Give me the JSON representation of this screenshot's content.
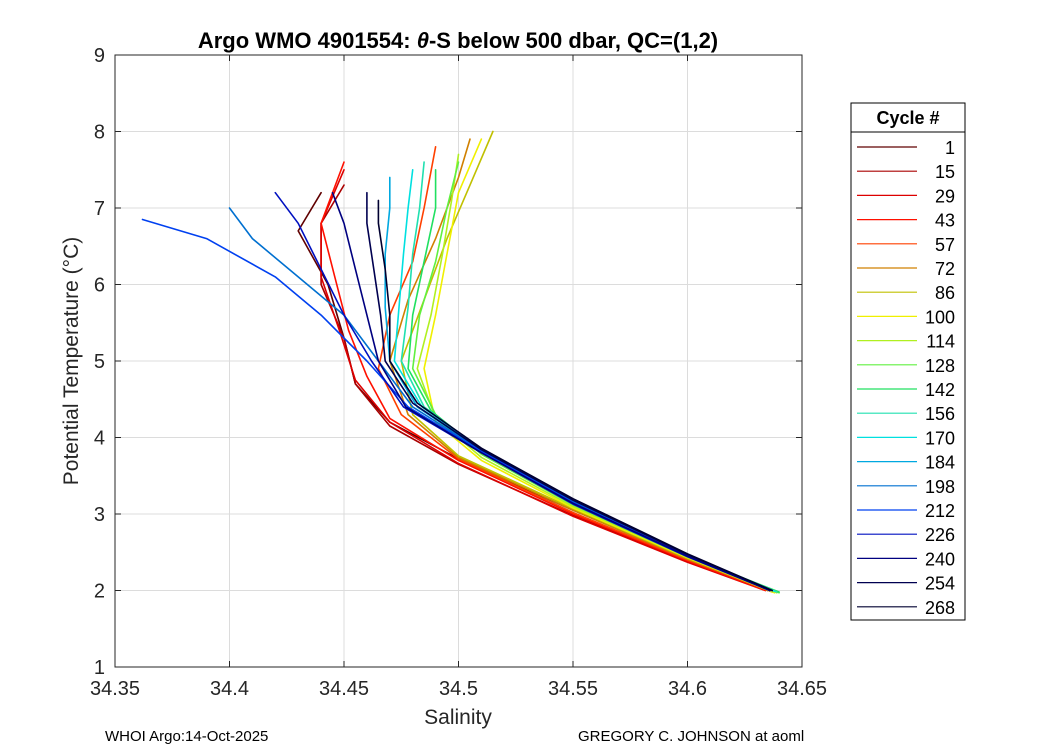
{
  "chart_data": {
    "type": "line",
    "title_parts": [
      "Argo WMO 4901554: ",
      "θ",
      "-S below 500 dbar,  QC=(1,2)"
    ],
    "xlabel": "Salinity",
    "ylabel": "Potential Temperature (°C)",
    "xlim": [
      34.35,
      34.65
    ],
    "ylim": [
      1,
      9
    ],
    "x_tick_labels": [
      "34.35",
      "34.4",
      "34.45",
      "34.5",
      "34.55",
      "34.6",
      "34.65"
    ],
    "y_tick_labels": [
      "1",
      "2",
      "3",
      "4",
      "5",
      "6",
      "7",
      "8",
      "9"
    ],
    "grid": true,
    "legend_title": "Cycle #",
    "legend_position": "right, outside",
    "series": [
      {
        "name": "1",
        "color": "#600000",
        "points": [
          [
            34.637,
            2.0
          ],
          [
            34.6,
            2.42
          ],
          [
            34.55,
            3.05
          ],
          [
            34.5,
            3.72
          ],
          [
            34.47,
            4.2
          ],
          [
            34.455,
            4.7
          ],
          [
            34.45,
            5.3
          ],
          [
            34.443,
            6.0
          ],
          [
            34.43,
            6.7
          ],
          [
            34.44,
            7.2
          ]
        ]
      },
      {
        "name": "15",
        "color": "#aa0000",
        "points": [
          [
            34.635,
            2.0
          ],
          [
            34.6,
            2.38
          ],
          [
            34.55,
            2.98
          ],
          [
            34.5,
            3.65
          ],
          [
            34.47,
            4.15
          ],
          [
            34.455,
            4.7
          ],
          [
            34.45,
            5.3
          ],
          [
            34.44,
            6.0
          ],
          [
            34.44,
            6.8
          ],
          [
            34.45,
            7.3
          ]
        ]
      },
      {
        "name": "29",
        "color": "#dd0000",
        "points": [
          [
            34.634,
            2.0
          ],
          [
            34.6,
            2.37
          ],
          [
            34.55,
            2.97
          ],
          [
            34.5,
            3.66
          ],
          [
            34.47,
            4.2
          ],
          [
            34.455,
            4.75
          ],
          [
            34.448,
            5.4
          ],
          [
            34.44,
            6.1
          ],
          [
            34.44,
            6.8
          ],
          [
            34.45,
            7.5
          ]
        ]
      },
      {
        "name": "43",
        "color": "#ff1000",
        "points": [
          [
            34.634,
            2.0
          ],
          [
            34.6,
            2.39
          ],
          [
            34.55,
            3.0
          ],
          [
            34.5,
            3.7
          ],
          [
            34.47,
            4.25
          ],
          [
            34.46,
            4.8
          ],
          [
            34.452,
            5.4
          ],
          [
            34.446,
            6.1
          ],
          [
            34.44,
            6.8
          ],
          [
            34.45,
            7.6
          ]
        ]
      },
      {
        "name": "57",
        "color": "#ff4000",
        "points": [
          [
            34.636,
            2.0
          ],
          [
            34.6,
            2.4
          ],
          [
            34.55,
            3.02
          ],
          [
            34.5,
            3.72
          ],
          [
            34.475,
            4.3
          ],
          [
            34.465,
            4.9
          ],
          [
            34.47,
            5.6
          ],
          [
            34.48,
            6.3
          ],
          [
            34.485,
            7.0
          ],
          [
            34.49,
            7.8
          ]
        ]
      },
      {
        "name": "72",
        "color": "#d08000",
        "points": [
          [
            34.637,
            1.98
          ],
          [
            34.6,
            2.41
          ],
          [
            34.55,
            3.05
          ],
          [
            34.5,
            3.74
          ],
          [
            34.478,
            4.3
          ],
          [
            34.47,
            5.0
          ],
          [
            34.478,
            5.8
          ],
          [
            34.49,
            6.6
          ],
          [
            34.5,
            7.4
          ],
          [
            34.505,
            7.9
          ]
        ]
      },
      {
        "name": "86",
        "color": "#c0c000",
        "points": [
          [
            34.638,
            1.98
          ],
          [
            34.6,
            2.42
          ],
          [
            34.55,
            3.07
          ],
          [
            34.5,
            3.76
          ],
          [
            34.48,
            4.3
          ],
          [
            34.475,
            5.0
          ],
          [
            34.485,
            5.8
          ],
          [
            34.495,
            6.6
          ],
          [
            34.505,
            7.3
          ],
          [
            34.515,
            8.0
          ]
        ]
      },
      {
        "name": "100",
        "color": "#f0f000",
        "points": [
          [
            34.638,
            1.97
          ],
          [
            34.6,
            2.43
          ],
          [
            34.55,
            3.08
          ],
          [
            34.51,
            3.7
          ],
          [
            34.49,
            4.2
          ],
          [
            34.485,
            4.9
          ],
          [
            34.49,
            5.6
          ],
          [
            34.495,
            6.4
          ],
          [
            34.5,
            7.2
          ],
          [
            34.51,
            7.9
          ]
        ]
      },
      {
        "name": "114",
        "color": "#b0f020",
        "points": [
          [
            34.639,
            1.97
          ],
          [
            34.6,
            2.44
          ],
          [
            34.55,
            3.1
          ],
          [
            34.51,
            3.74
          ],
          [
            34.49,
            4.25
          ],
          [
            34.482,
            4.9
          ],
          [
            34.488,
            5.6
          ],
          [
            34.493,
            6.4
          ],
          [
            34.497,
            7.1
          ],
          [
            34.5,
            7.7
          ]
        ]
      },
      {
        "name": "128",
        "color": "#60f040",
        "points": [
          [
            34.64,
            1.97
          ],
          [
            34.6,
            2.44
          ],
          [
            34.55,
            3.12
          ],
          [
            34.51,
            3.78
          ],
          [
            34.49,
            4.3
          ],
          [
            34.48,
            4.9
          ],
          [
            34.483,
            5.6
          ],
          [
            34.49,
            6.3
          ],
          [
            34.495,
            7.0
          ],
          [
            34.5,
            7.6
          ]
        ]
      },
      {
        "name": "142",
        "color": "#20e060",
        "points": [
          [
            34.64,
            1.98
          ],
          [
            34.6,
            2.45
          ],
          [
            34.55,
            3.14
          ],
          [
            34.51,
            3.82
          ],
          [
            34.488,
            4.35
          ],
          [
            34.478,
            4.9
          ],
          [
            34.48,
            5.6
          ],
          [
            34.485,
            6.3
          ],
          [
            34.49,
            7.0
          ],
          [
            34.49,
            7.5
          ]
        ]
      },
      {
        "name": "156",
        "color": "#20e0b0",
        "points": [
          [
            34.639,
            1.98
          ],
          [
            34.6,
            2.46
          ],
          [
            34.55,
            3.16
          ],
          [
            34.51,
            3.84
          ],
          [
            34.485,
            4.4
          ],
          [
            34.475,
            5.0
          ],
          [
            34.478,
            5.7
          ],
          [
            34.48,
            6.4
          ],
          [
            34.483,
            7.0
          ],
          [
            34.485,
            7.6
          ]
        ]
      },
      {
        "name": "170",
        "color": "#00e0e0",
        "points": [
          [
            34.638,
            1.99
          ],
          [
            34.6,
            2.46
          ],
          [
            34.55,
            3.16
          ],
          [
            34.51,
            3.84
          ],
          [
            34.484,
            4.4
          ],
          [
            34.472,
            5.0
          ],
          [
            34.474,
            5.7
          ],
          [
            34.476,
            6.4
          ],
          [
            34.478,
            7.0
          ],
          [
            34.48,
            7.5
          ]
        ]
      },
      {
        "name": "184",
        "color": "#00a8e0",
        "points": [
          [
            34.637,
            2.0
          ],
          [
            34.6,
            2.47
          ],
          [
            34.55,
            3.17
          ],
          [
            34.51,
            3.84
          ],
          [
            34.482,
            4.4
          ],
          [
            34.47,
            5.0
          ],
          [
            34.468,
            5.7
          ],
          [
            34.468,
            6.4
          ],
          [
            34.47,
            7.0
          ],
          [
            34.47,
            7.4
          ]
        ]
      },
      {
        "name": "198",
        "color": "#0070d0",
        "points": [
          [
            34.636,
            2.0
          ],
          [
            34.6,
            2.46
          ],
          [
            34.55,
            3.16
          ],
          [
            34.51,
            3.83
          ],
          [
            34.48,
            4.4
          ],
          [
            34.465,
            5.0
          ],
          [
            34.45,
            5.6
          ],
          [
            34.43,
            6.1
          ],
          [
            34.41,
            6.6
          ],
          [
            34.4,
            7.0
          ]
        ]
      },
      {
        "name": "212",
        "color": "#0040f0",
        "points": [
          [
            34.636,
            2.0
          ],
          [
            34.6,
            2.45
          ],
          [
            34.55,
            3.15
          ],
          [
            34.51,
            3.82
          ],
          [
            34.478,
            4.4
          ],
          [
            34.46,
            5.0
          ],
          [
            34.44,
            5.6
          ],
          [
            34.42,
            6.1
          ],
          [
            34.39,
            6.6
          ],
          [
            34.362,
            6.85
          ]
        ]
      },
      {
        "name": "226",
        "color": "#0010c0",
        "points": [
          [
            34.636,
            2.0
          ],
          [
            34.6,
            2.44
          ],
          [
            34.55,
            3.13
          ],
          [
            34.51,
            3.8
          ],
          [
            34.476,
            4.4
          ],
          [
            34.462,
            5.0
          ],
          [
            34.45,
            5.6
          ],
          [
            34.44,
            6.2
          ],
          [
            34.43,
            6.8
          ],
          [
            34.42,
            7.2
          ]
        ]
      },
      {
        "name": "240",
        "color": "#000080",
        "points": [
          [
            34.636,
            2.0
          ],
          [
            34.6,
            2.45
          ],
          [
            34.55,
            3.14
          ],
          [
            34.51,
            3.8
          ],
          [
            34.477,
            4.4
          ],
          [
            34.465,
            5.0
          ],
          [
            34.46,
            5.6
          ],
          [
            34.455,
            6.2
          ],
          [
            34.45,
            6.8
          ],
          [
            34.445,
            7.2
          ]
        ]
      },
      {
        "name": "254",
        "color": "#000050",
        "points": [
          [
            34.637,
            2.0
          ],
          [
            34.6,
            2.47
          ],
          [
            34.55,
            3.18
          ],
          [
            34.51,
            3.84
          ],
          [
            34.48,
            4.45
          ],
          [
            34.468,
            5.0
          ],
          [
            34.466,
            5.6
          ],
          [
            34.463,
            6.2
          ],
          [
            34.46,
            6.8
          ],
          [
            34.46,
            7.2
          ]
        ]
      },
      {
        "name": "268",
        "color": "#000030",
        "points": [
          [
            34.637,
            2.0
          ],
          [
            34.6,
            2.48
          ],
          [
            34.55,
            3.2
          ],
          [
            34.51,
            3.86
          ],
          [
            34.482,
            4.45
          ],
          [
            34.47,
            5.0
          ],
          [
            34.47,
            5.6
          ],
          [
            34.468,
            6.2
          ],
          [
            34.465,
            6.8
          ],
          [
            34.465,
            7.1
          ]
        ]
      }
    ]
  },
  "footer": {
    "left": "WHOI Argo:14-Oct-2025",
    "right": "GREGORY C. JOHNSON at aoml"
  }
}
